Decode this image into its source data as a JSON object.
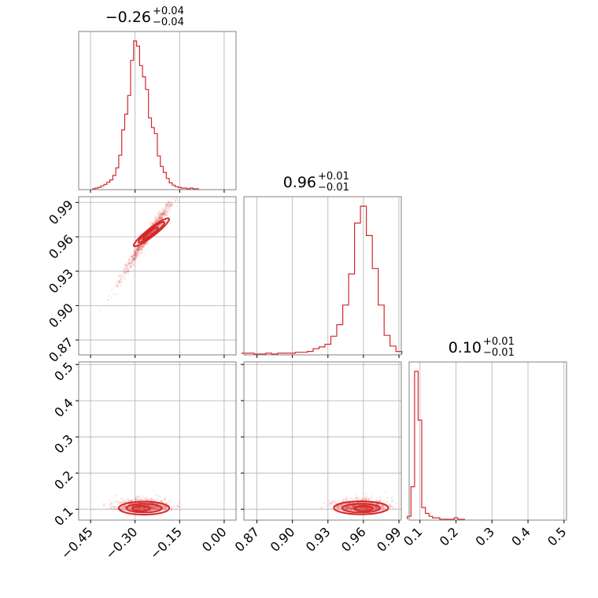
{
  "colors": {
    "accent": "#d62728",
    "grid": "#b0b0b0",
    "axes": "#808080"
  },
  "chart_data": {
    "type": "corner",
    "grid": true,
    "panels": [
      {
        "id": "hist-p0",
        "type": "step-histogram",
        "title": {
          "value": "−0.26",
          "plus": "+0.04",
          "minus": "−0.04"
        },
        "xlim": [
          -0.49,
          0.04
        ],
        "xticks": [
          -0.45,
          -0.3,
          -0.15,
          0.0
        ],
        "bins": {
          "x": [
            -0.44,
            -0.43,
            -0.42,
            -0.41,
            -0.4,
            -0.39,
            -0.38,
            -0.37,
            -0.36,
            -0.35,
            -0.34,
            -0.33,
            -0.32,
            -0.31,
            -0.3,
            -0.29,
            -0.28,
            -0.27,
            -0.26,
            -0.25,
            -0.24,
            -0.23,
            -0.22,
            -0.21,
            -0.2,
            -0.19,
            -0.18,
            -0.17,
            -0.16,
            -0.15,
            -0.14,
            -0.13,
            -0.12,
            -0.11,
            -0.1,
            -0.09
          ],
          "counts": [
            0,
            1,
            2,
            4,
            6,
            9,
            12,
            18,
            28,
            45,
            79,
            100,
            125,
            172,
            198,
            191,
            165,
            150,
            133,
            95,
            82,
            74,
            44,
            30,
            22,
            14,
            8,
            5,
            3,
            2,
            1,
            1,
            0,
            1,
            0,
            0
          ]
        }
      },
      {
        "id": "scatter-p0-p1",
        "type": "scatter-contour",
        "xlim": [
          -0.49,
          0.04
        ],
        "ylim": [
          0.857,
          0.995
        ],
        "xticks": [
          -0.45,
          -0.3,
          -0.15,
          0.0
        ],
        "yticks": [
          0.87,
          0.9,
          0.93,
          0.96,
          0.99
        ],
        "ytick_labels": [
          "0.87",
          "0.90",
          "0.93",
          "0.96",
          "0.99"
        ]
      },
      {
        "id": "hist-p1",
        "type": "step-histogram",
        "title": {
          "value": "0.96",
          "plus": "+0.01",
          "minus": "−0.01"
        },
        "xlim": [
          0.859,
          0.992
        ],
        "xticks": [
          0.87,
          0.9,
          0.93,
          0.96,
          0.99
        ],
        "bins": {
          "x": [
            0.86,
            0.865,
            0.87,
            0.875,
            0.88,
            0.885,
            0.89,
            0.895,
            0.9,
            0.905,
            0.91,
            0.915,
            0.92,
            0.925,
            0.93,
            0.935,
            0.94,
            0.945,
            0.95,
            0.955,
            0.96,
            0.965,
            0.97,
            0.975,
            0.98,
            0.985,
            0.99
          ],
          "counts": [
            1,
            1,
            0,
            0,
            1,
            0,
            1,
            1,
            1,
            2,
            2,
            3,
            6,
            8,
            11,
            20,
            33,
            55,
            90,
            147,
            166,
            133,
            96,
            55,
            21,
            9,
            3
          ]
        }
      },
      {
        "id": "scatter-p0-p2",
        "type": "scatter-contour",
        "xlim": [
          -0.49,
          0.04
        ],
        "ylim": [
          0.07,
          0.507
        ],
        "xticks": [
          -0.45,
          -0.3,
          -0.15,
          0.0
        ],
        "xtick_labels": [
          "−0.45",
          "−0.30",
          "−0.15",
          "0.00"
        ],
        "yticks": [
          0.1,
          0.2,
          0.3,
          0.4,
          0.5
        ],
        "ytick_labels": [
          "0.1",
          "0.2",
          "0.3",
          "0.4",
          "0.5"
        ]
      },
      {
        "id": "scatter-p1-p2",
        "type": "scatter-contour",
        "xlim": [
          0.859,
          0.992
        ],
        "ylim": [
          0.07,
          0.507
        ],
        "xticks": [
          0.87,
          0.9,
          0.93,
          0.96,
          0.99
        ],
        "xtick_labels": [
          "0.87",
          "0.90",
          "0.93",
          "0.96",
          "0.99"
        ],
        "yticks": [
          0.1,
          0.2,
          0.3,
          0.4,
          0.5
        ]
      },
      {
        "id": "hist-p2",
        "type": "step-histogram",
        "title": {
          "value": "0.10",
          "plus": "+0.01",
          "minus": "−0.01"
        },
        "xlim": [
          0.07,
          0.507
        ],
        "xticks": [
          0.1,
          0.2,
          0.3,
          0.4,
          0.5
        ],
        "xtick_labels": [
          "0.1",
          "0.2",
          "0.3",
          "0.4",
          "0.5"
        ],
        "bins": {
          "x": [
            0.07,
            0.08,
            0.09,
            0.1,
            0.11,
            0.12,
            0.13,
            0.14,
            0.15,
            0.16,
            0.17,
            0.18,
            0.19,
            0.2,
            0.21,
            0.22
          ],
          "counts": [
            2,
            22,
            100,
            67,
            8,
            4,
            2,
            1,
            1,
            0,
            0,
            0,
            0,
            1,
            0,
            0
          ]
        }
      }
    ]
  }
}
